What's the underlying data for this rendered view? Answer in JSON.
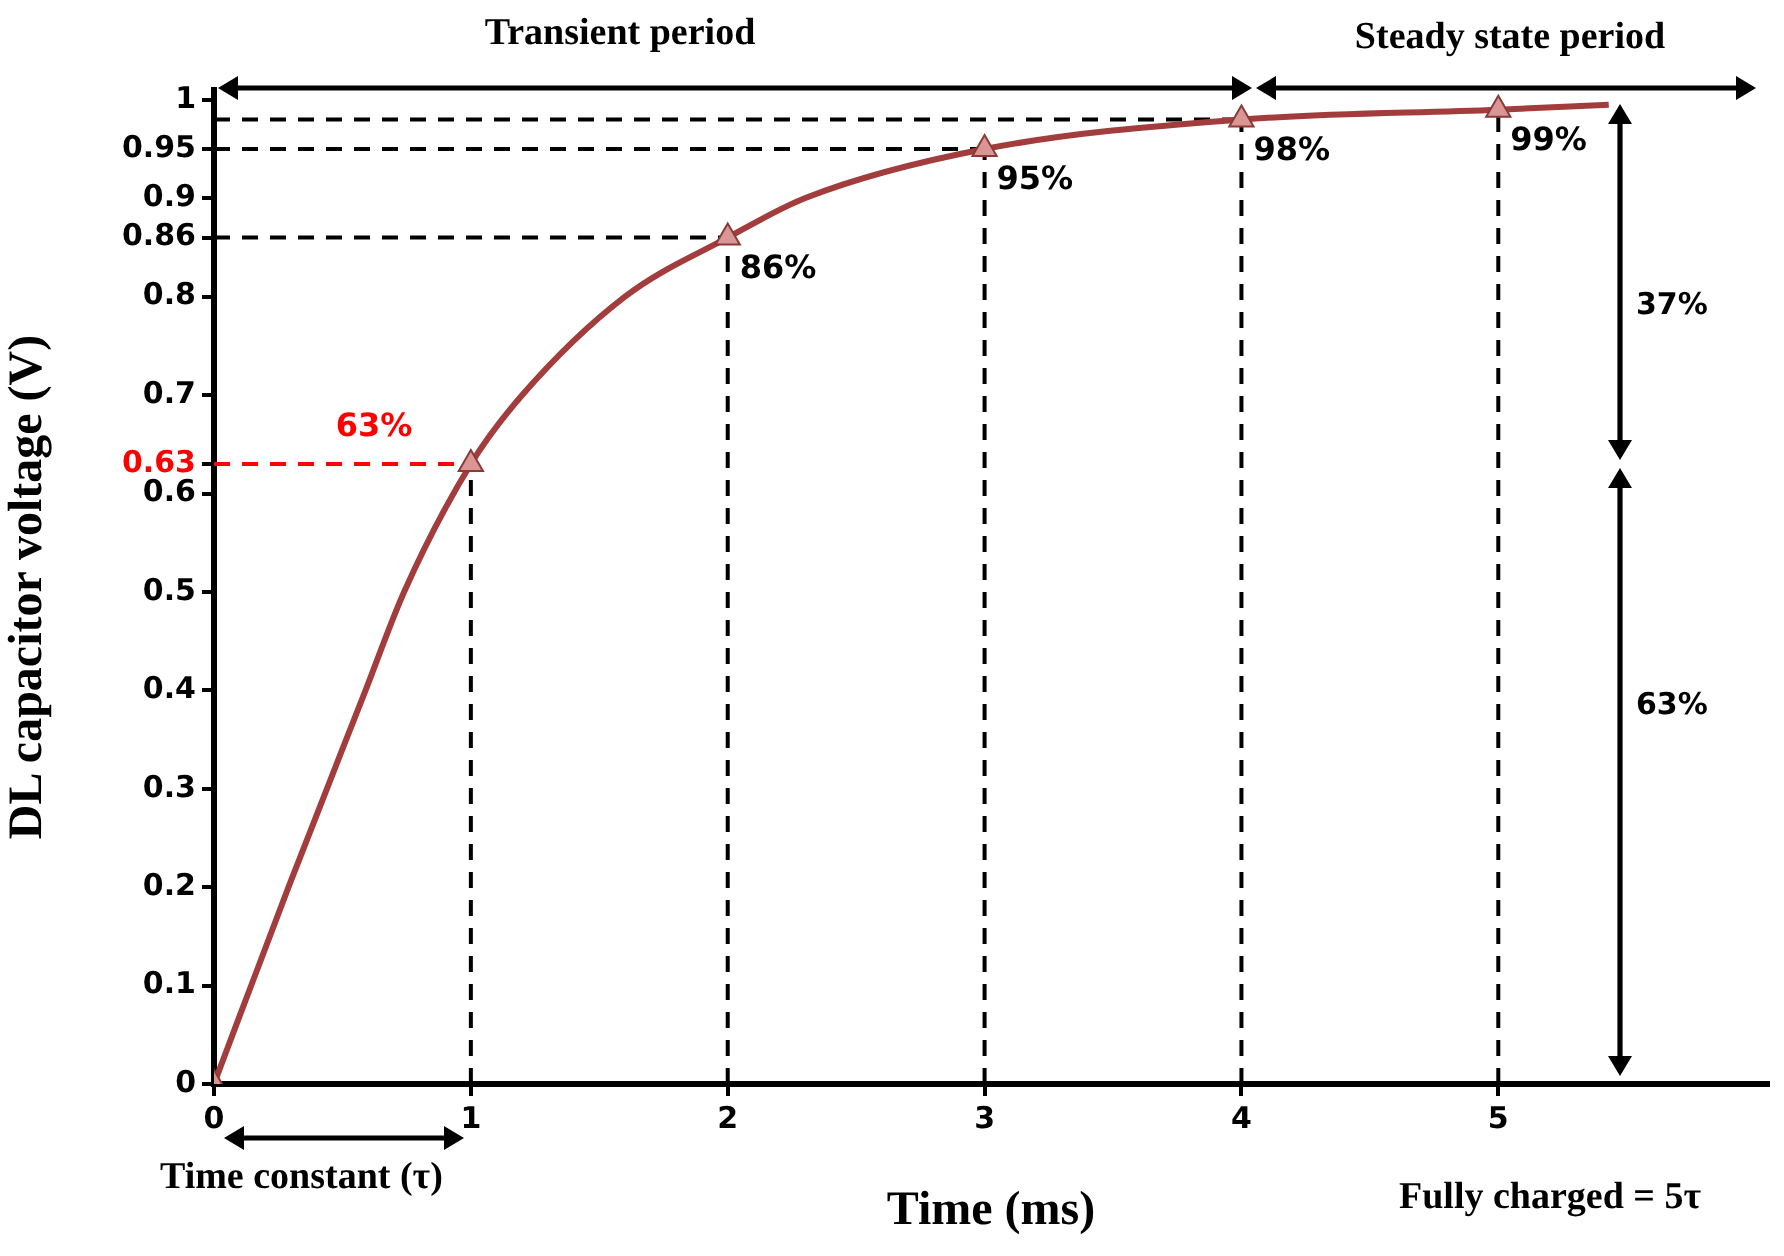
{
  "chart_data": {
    "type": "line",
    "xlabel": "Time (ms)",
    "ylabel": "DL capacitor voltage (V)",
    "xlim": [
      0,
      6.05
    ],
    "xticks": [
      0,
      1,
      2,
      3,
      4,
      5
    ],
    "ylim": [
      0,
      1.01
    ],
    "yticks": [
      0,
      0.1,
      0.2,
      0.3,
      0.4,
      0.5,
      0.6,
      0.63,
      0.7,
      0.8,
      0.86,
      0.9,
      0.95,
      1
    ],
    "grid": false,
    "legend": false,
    "series": [
      {
        "color": "#a33c3c",
        "marker": "none",
        "x": [
          0,
          0.29,
          0.59,
          0.74,
          1,
          1.2,
          1.6,
          2,
          2.3,
          3,
          4,
          5,
          5.43
        ],
        "values": [
          0,
          0.2,
          0.4,
          0.5,
          0.63,
          0.7,
          0.8,
          0.86,
          0.9,
          0.95,
          0.98,
          0.99,
          0.995
        ]
      },
      {
        "type": "scatter",
        "color": "#d99694",
        "marker": "triangle",
        "x": [
          0,
          1,
          2,
          3,
          4,
          5
        ],
        "values": [
          0,
          0.63,
          0.86,
          0.95,
          0.98,
          0.99
        ],
        "value_labels": [
          null,
          null,
          "86%",
          "95%",
          "98%",
          "99%"
        ]
      }
    ],
    "ref_lines": [
      {
        "axis": "y",
        "value": 0.63,
        "label": "63%",
        "color": "#ff0000",
        "line_style": "dashed"
      },
      {
        "axis": "y",
        "value": 0.86,
        "color": "#000000",
        "line_style": "dashed"
      },
      {
        "axis": "y",
        "value": 0.95,
        "color": "#000000",
        "line_style": "dashed"
      },
      {
        "axis": "y",
        "value": 0.98,
        "color": "#000000",
        "line_style": "dashed"
      },
      {
        "axis": "x",
        "value": 1,
        "color": "#000000",
        "line_style": "dashed"
      },
      {
        "axis": "x",
        "value": 2,
        "color": "#000000",
        "line_style": "dashed"
      },
      {
        "axis": "x",
        "value": 3,
        "color": "#000000",
        "line_style": "dashed"
      },
      {
        "axis": "x",
        "value": 4,
        "color": "#000000",
        "line_style": "dashed"
      },
      {
        "axis": "x",
        "value": 5,
        "color": "#000000",
        "line_style": "dashed"
      }
    ],
    "annotations": [
      "Transient period",
      "Steady state period",
      "Time constant (τ)",
      "Fully charged = 5τ",
      "37%",
      "63%"
    ]
  }
}
